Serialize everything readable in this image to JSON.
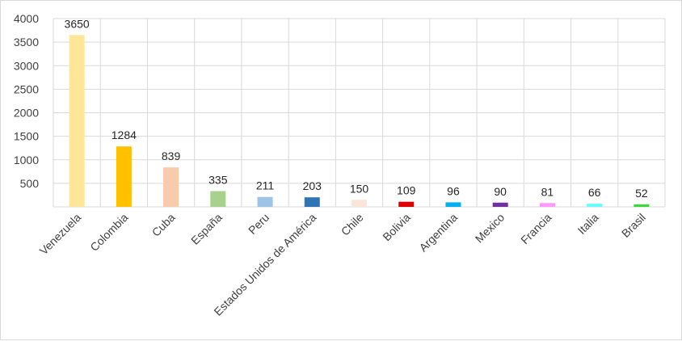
{
  "chart_data": {
    "type": "bar",
    "title": "",
    "xlabel": "",
    "ylabel": "",
    "ylim": [
      0,
      4000
    ],
    "yticks": [
      500,
      1000,
      1500,
      2000,
      2500,
      3000,
      3500,
      4000
    ],
    "grid": true,
    "legend": "none",
    "categories": [
      "Venezuela",
      "Colombia",
      "Cuba",
      "España",
      "Peru",
      "Estados Unidos de América",
      "Chile",
      "Bolivia",
      "Argentina",
      "Mexico",
      "Francia",
      "Italia",
      "Brasil"
    ],
    "values": [
      3650,
      1284,
      839,
      335,
      211,
      203,
      150,
      109,
      96,
      90,
      81,
      66,
      52
    ],
    "colors": [
      "#ffe699",
      "#ffc000",
      "#f8cbad",
      "#a9d18e",
      "#9dc3e6",
      "#2e75b6",
      "#fbe5d6",
      "#e00000",
      "#00b0f0",
      "#7030a0",
      "#ff99ff",
      "#66ffff",
      "#33dd33"
    ]
  }
}
